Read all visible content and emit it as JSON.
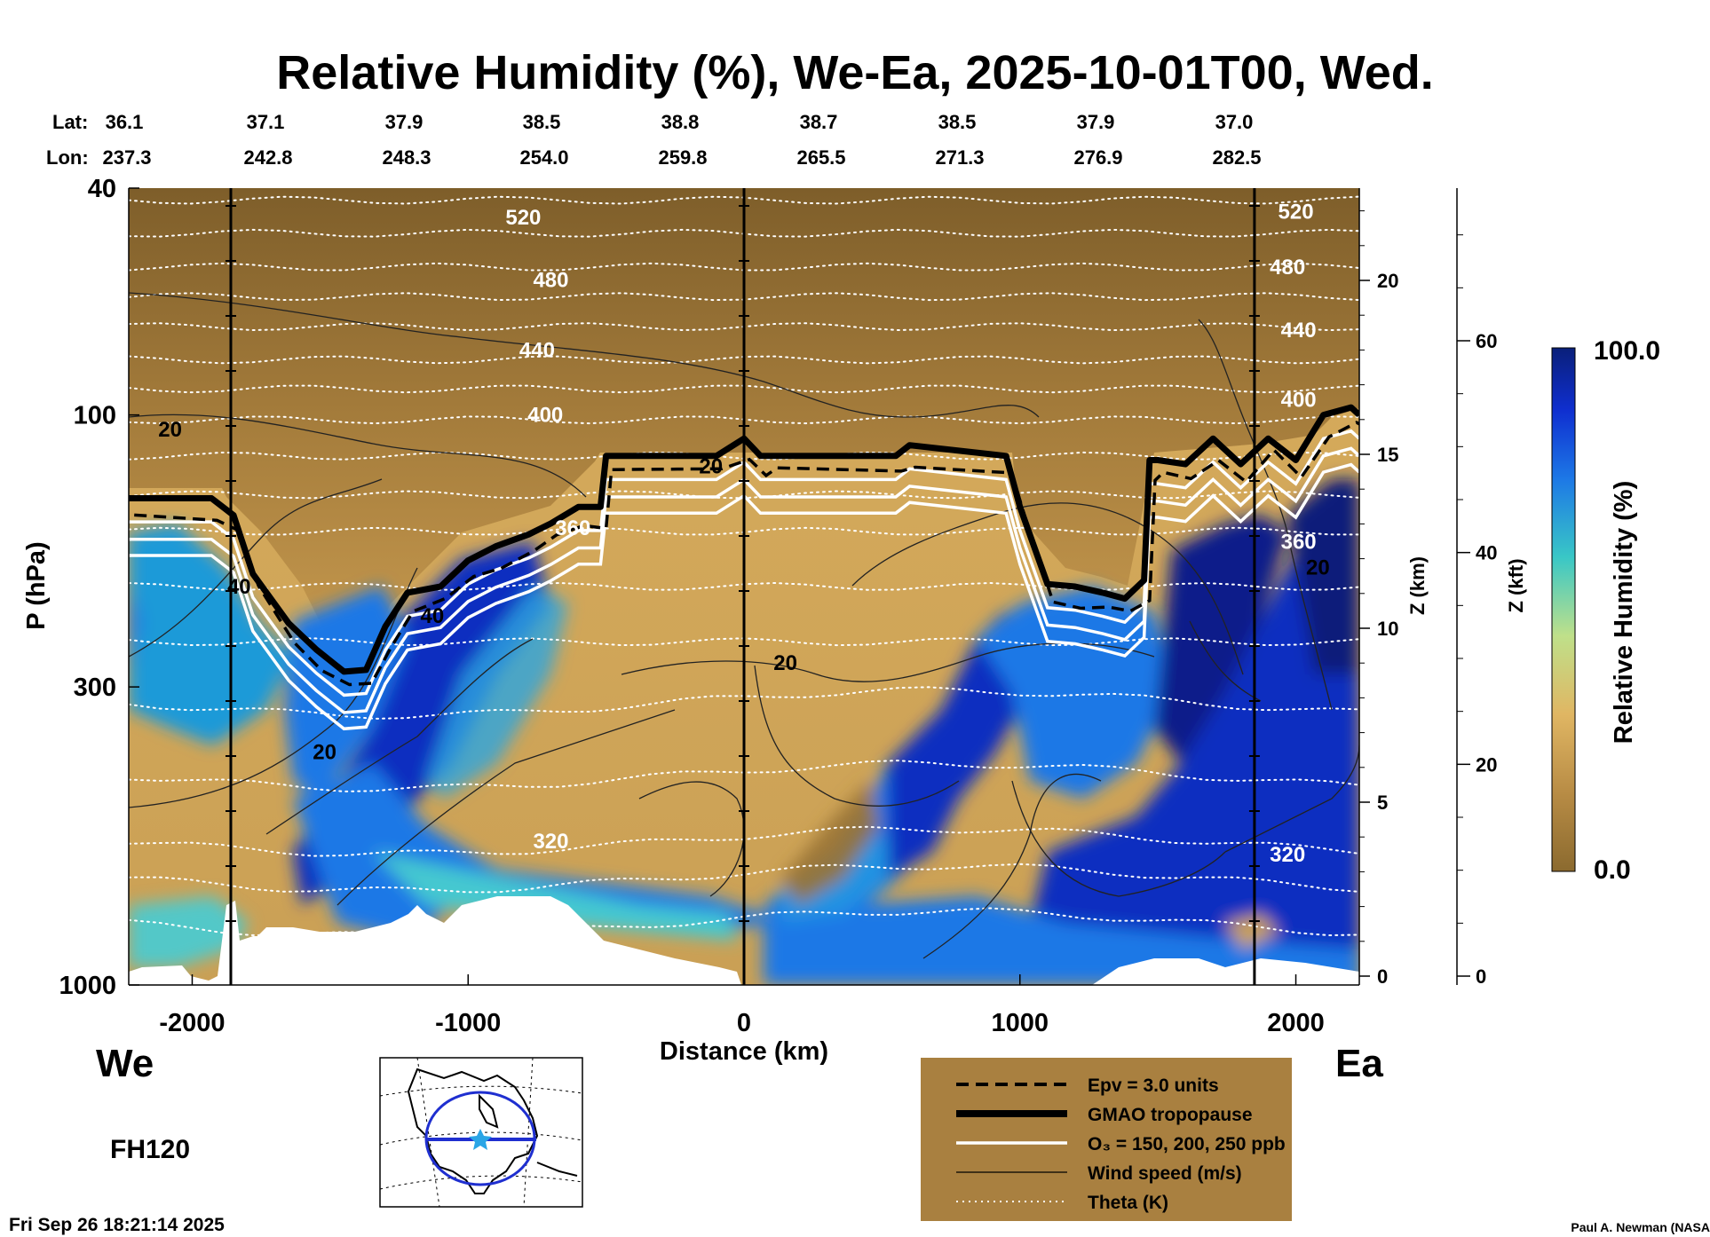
{
  "title": "Relative Humidity (%), We-Ea, 2025-10-01T00, Wed.",
  "lat_label": "Lat:",
  "lon_label": "Lon:",
  "lats": [
    "36.1",
    "37.1",
    "37.9",
    "38.5",
    "38.8",
    "38.7",
    "38.5",
    "37.9",
    "37.0"
  ],
  "lons": [
    "237.3",
    "242.8",
    "248.3",
    "254.0",
    "259.8",
    "265.5",
    "271.3",
    "276.9",
    "282.5"
  ],
  "left_axis_label": "P (hPa)",
  "z_km_label": "Z (km)",
  "z_kft_label": "Z (kft)",
  "x_axis_label": "Distance (km)",
  "west_label": "We",
  "east_label": "Ea",
  "forecast_hour": "FH120",
  "colorbar_label": "Relative Humidity (%)",
  "colorbar_max": "100.0",
  "colorbar_min": "0.0",
  "legend": [
    {
      "style": "dashed",
      "text": "Epv = 3.0 units"
    },
    {
      "style": "thick",
      "text": "GMAO tropopause"
    },
    {
      "style": "white",
      "text": "O₃ = 150, 200, 250 ppb"
    },
    {
      "style": "thin",
      "text": "Wind speed (m/s)"
    },
    {
      "style": "dotted",
      "text": "Theta (K)"
    }
  ],
  "footer_timestamp": "Fri Sep 26 18:21:14 2025",
  "credit": "Paul A. Newman (NASA",
  "colors": {
    "dry": "#8b6a2f",
    "moist": "#0a1f8a",
    "legend_bg": "#a98040",
    "tropopause": "#000000"
  },
  "chart_data": {
    "type": "heatmap",
    "title": "Relative Humidity (%), We-Ea, 2025-10-01T00, Wed.",
    "xlabel": "Distance (km)",
    "ylabel": "P (hPa)",
    "xlim": [
      -2230,
      2230
    ],
    "ylim": [
      1000,
      40
    ],
    "y_scale": "log",
    "x_ticks": [
      "-2000",
      "-1000",
      "0",
      "1000",
      "2000"
    ],
    "x_tick_values": [
      -2000,
      -1000,
      0,
      1000,
      2000
    ],
    "y_ticks": [
      "40",
      "100",
      "300",
      "1000"
    ],
    "y_tick_values": [
      40,
      100,
      300,
      1000
    ],
    "z_km_ticks": [
      "0",
      "5",
      "10",
      "15",
      "20"
    ],
    "z_km_values": [
      0,
      5,
      10,
      15,
      20
    ],
    "z_kft_ticks": [
      "0",
      "20",
      "40",
      "60"
    ],
    "z_kft_values": [
      0,
      20,
      40,
      60
    ],
    "colorbar_range": [
      0,
      100
    ],
    "theta_labels": [
      {
        "text": "520",
        "x": -800,
        "p": 45
      },
      {
        "text": "480",
        "x": -700,
        "p": 58
      },
      {
        "text": "440",
        "x": -750,
        "p": 77
      },
      {
        "text": "400",
        "x": -720,
        "p": 100
      },
      {
        "text": "360",
        "x": -620,
        "p": 158
      },
      {
        "text": "320",
        "x": -700,
        "p": 560
      },
      {
        "text": "520",
        "x": 2000,
        "p": 44
      },
      {
        "text": "480",
        "x": 1970,
        "p": 55
      },
      {
        "text": "440",
        "x": 2010,
        "p": 71
      },
      {
        "text": "400",
        "x": 2010,
        "p": 94
      },
      {
        "text": "360",
        "x": 2010,
        "p": 167
      },
      {
        "text": "320",
        "x": 1970,
        "p": 590
      }
    ],
    "wind_labels": [
      {
        "text": "20",
        "x": -2080,
        "p": 106
      },
      {
        "text": "20",
        "x": -1520,
        "p": 390
      },
      {
        "text": "40",
        "x": -1830,
        "p": 200
      },
      {
        "text": "40",
        "x": -1130,
        "p": 225
      },
      {
        "text": "20",
        "x": 150,
        "p": 272
      },
      {
        "text": "20",
        "x": -120,
        "p": 123
      },
      {
        "text": "20",
        "x": 2080,
        "p": 185
      }
    ],
    "tropopause": {
      "x": [
        -2230,
        -1930,
        -1850,
        -1780,
        -1650,
        -1550,
        -1450,
        -1370,
        -1300,
        -1220,
        -1100,
        -1000,
        -900,
        -780,
        -700,
        -600,
        -520,
        -500,
        -100,
        0,
        60,
        100,
        550,
        600,
        950,
        1000,
        1100,
        1200,
        1300,
        1380,
        1450,
        1470,
        1500,
        1600,
        1700,
        1800,
        1900,
        2000,
        2100,
        2200,
        2230
      ],
      "p": [
        140,
        140,
        150,
        190,
        232,
        258,
        282,
        280,
        235,
        205,
        200,
        180,
        170,
        162,
        155,
        145,
        145,
        118,
        118,
        110,
        118,
        118,
        118,
        113,
        118,
        145,
        198,
        200,
        205,
        210,
        195,
        120,
        120,
        122,
        110,
        122,
        110,
        120,
        100,
        97,
        100
      ]
    }
  }
}
